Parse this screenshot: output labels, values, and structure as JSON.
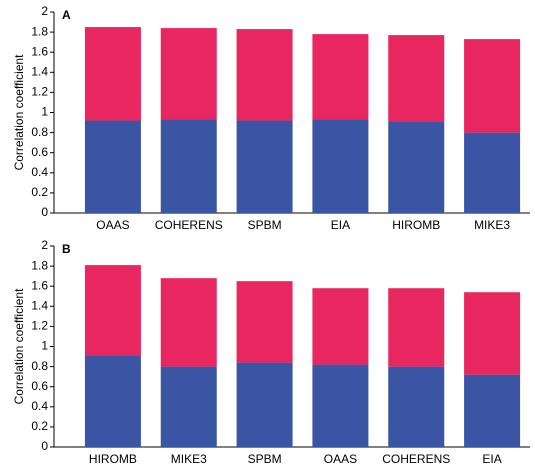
{
  "chart_data": [
    {
      "type": "bar",
      "stacked": true,
      "annotation": "A",
      "y_label": "Correlation coefficient",
      "categories": [
        "OAAS",
        "COHERENS",
        "SPBM",
        "EIA",
        "HIROMB",
        "MIKE3"
      ],
      "series": [
        {
          "color": "#3a55a4",
          "values": [
            0.92,
            0.93,
            0.92,
            0.93,
            0.91,
            0.8
          ]
        },
        {
          "color": "#e8265f",
          "values": [
            0.93,
            0.91,
            0.91,
            0.85,
            0.86,
            0.93
          ]
        }
      ],
      "ylim": [
        0,
        2
      ],
      "yticks": [
        0,
        0.2,
        0.4,
        0.6,
        0.8,
        1,
        1.2,
        1.4,
        1.6,
        1.8,
        2
      ]
    },
    {
      "type": "bar",
      "stacked": true,
      "annotation": "B",
      "y_label": "Correlation coefficient",
      "categories": [
        "HIROMB",
        "MIKE3",
        "SPBM",
        "OAAS",
        "COHERENS",
        "EIA"
      ],
      "series": [
        {
          "color": "#3a55a4",
          "values": [
            0.91,
            0.8,
            0.84,
            0.82,
            0.8,
            0.72
          ]
        },
        {
          "color": "#e8265f",
          "values": [
            0.9,
            0.88,
            0.81,
            0.76,
            0.78,
            0.82
          ]
        }
      ],
      "ylim": [
        0,
        2
      ],
      "yticks": [
        0,
        0.2,
        0.4,
        0.6,
        0.8,
        1,
        1.2,
        1.4,
        1.6,
        1.8,
        2
      ]
    }
  ]
}
